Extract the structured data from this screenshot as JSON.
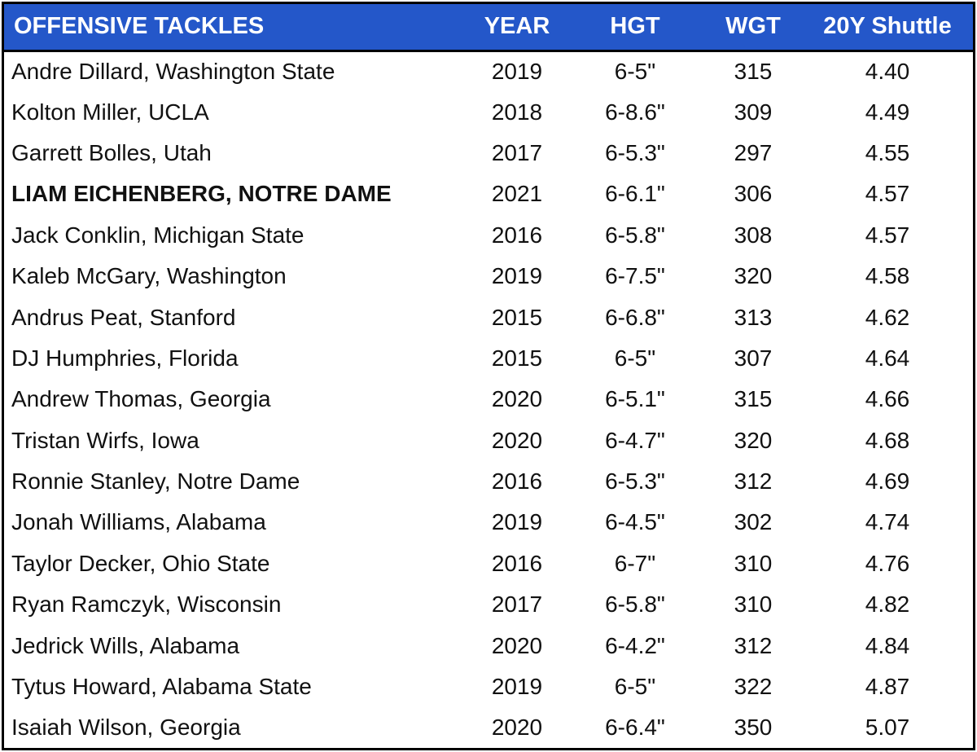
{
  "header": {
    "position": "OFFENSIVE TACKLES",
    "year": "YEAR",
    "height": "HGT",
    "weight": "WGT",
    "shuttle": "20Y Shuttle"
  },
  "colors": {
    "header_bg": "#2457c9",
    "header_text": "#ffffff",
    "border": "#000000"
  },
  "highlighted_player": "LIAM EICHENBERG, NOTRE DAME",
  "rows": [
    {
      "name": "Andre Dillard, Washington State",
      "year": "2019",
      "hgt": "6-5\"",
      "wgt": "315",
      "shuttle": "4.40"
    },
    {
      "name": "Kolton Miller, UCLA",
      "year": "2018",
      "hgt": "6-8.6\"",
      "wgt": "309",
      "shuttle": "4.49"
    },
    {
      "name": "Garrett Bolles, Utah",
      "year": "2017",
      "hgt": "6-5.3\"",
      "wgt": "297",
      "shuttle": "4.55"
    },
    {
      "name": "LIAM EICHENBERG, NOTRE DAME",
      "year": "2021",
      "hgt": "6-6.1\"",
      "wgt": "306",
      "shuttle": "4.57"
    },
    {
      "name": "Jack Conklin, Michigan State",
      "year": "2016",
      "hgt": "6-5.8\"",
      "wgt": "308",
      "shuttle": "4.57"
    },
    {
      "name": "Kaleb McGary, Washington",
      "year": "2019",
      "hgt": "6-7.5\"",
      "wgt": "320",
      "shuttle": "4.58"
    },
    {
      "name": "Andrus Peat, Stanford",
      "year": "2015",
      "hgt": "6-6.8\"",
      "wgt": "313",
      "shuttle": "4.62"
    },
    {
      "name": "DJ Humphries, Florida",
      "year": "2015",
      "hgt": "6-5\"",
      "wgt": "307",
      "shuttle": "4.64"
    },
    {
      "name": "Andrew Thomas, Georgia",
      "year": "2020",
      "hgt": "6-5.1\"",
      "wgt": "315",
      "shuttle": "4.66"
    },
    {
      "name": "Tristan Wirfs, Iowa",
      "year": "2020",
      "hgt": "6-4.7\"",
      "wgt": "320",
      "shuttle": "4.68"
    },
    {
      "name": "Ronnie Stanley, Notre Dame",
      "year": "2016",
      "hgt": "6-5.3\"",
      "wgt": "312",
      "shuttle": "4.69"
    },
    {
      "name": "Jonah Williams, Alabama",
      "year": "2019",
      "hgt": "6-4.5\"",
      "wgt": "302",
      "shuttle": "4.74"
    },
    {
      "name": "Taylor Decker, Ohio State",
      "year": "2016",
      "hgt": "6-7\"",
      "wgt": "310",
      "shuttle": "4.76"
    },
    {
      "name": "Ryan Ramczyk, Wisconsin",
      "year": "2017",
      "hgt": "6-5.8\"",
      "wgt": "310",
      "shuttle": "4.82"
    },
    {
      "name": "Jedrick Wills, Alabama",
      "year": "2020",
      "hgt": "6-4.2\"",
      "wgt": "312",
      "shuttle": "4.84"
    },
    {
      "name": "Tytus Howard, Alabama State",
      "year": "2019",
      "hgt": "6-5\"",
      "wgt": "322",
      "shuttle": "4.87"
    },
    {
      "name": "Isaiah Wilson, Georgia",
      "year": "2020",
      "hgt": "6-6.4\"",
      "wgt": "350",
      "shuttle": "5.07"
    }
  ]
}
